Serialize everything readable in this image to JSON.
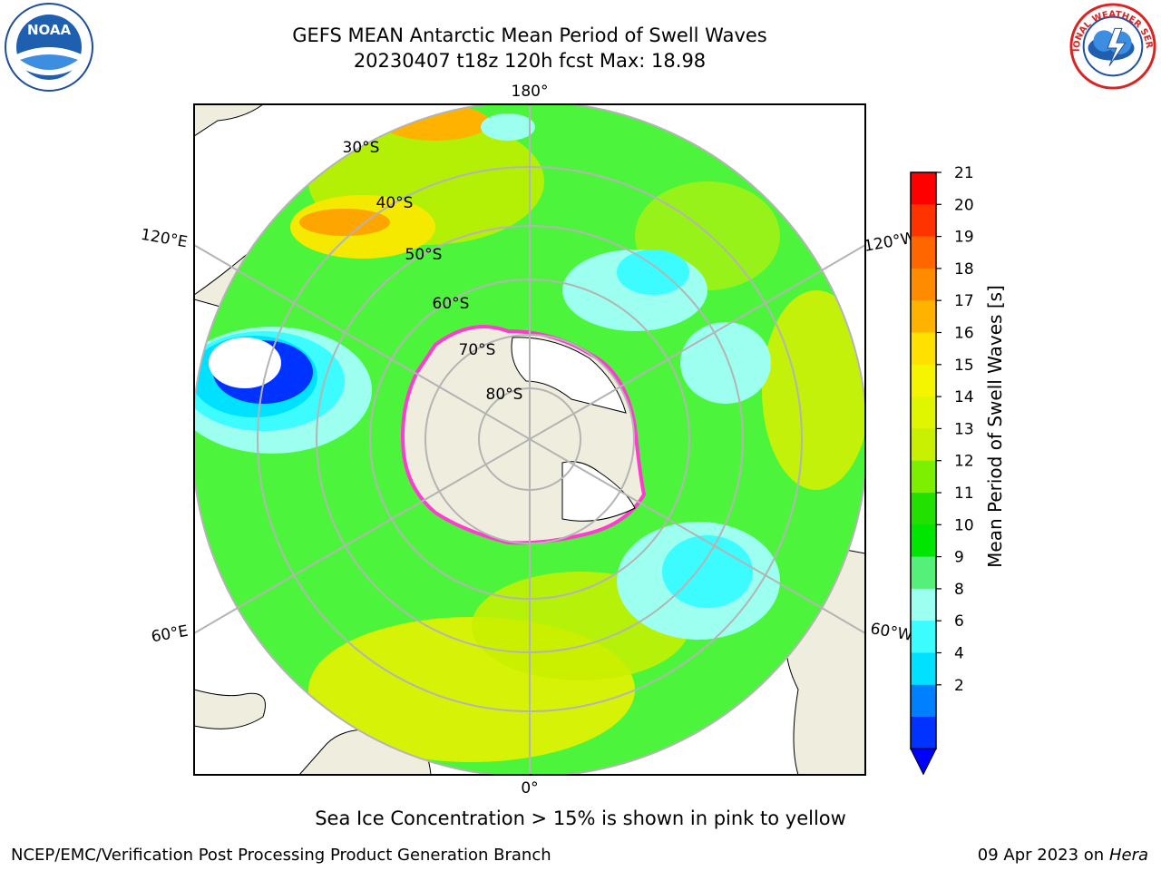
{
  "header": {
    "title_line1": "GEFS MEAN Antarctic Mean Period of Swell Waves",
    "title_line2": "20230407 t18z 120h fcst   Max: 18.98"
  },
  "logos": {
    "left": {
      "icon": "noaa-logo-icon",
      "text": "NOAA"
    },
    "right": {
      "icon": "nws-logo-icon",
      "text": "NATIONAL WEATHER SERVICE"
    }
  },
  "map": {
    "projection": "south-polar-stereographic",
    "longitude_labels": {
      "top": "180°",
      "bottom": "0°",
      "left_upper": "120°E",
      "left_lower": "60°E",
      "right_upper": "120°W",
      "right_lower": "60°W"
    },
    "latitude_labels": [
      "30°S",
      "40°S",
      "50°S",
      "60°S",
      "70°S",
      "80°S"
    ],
    "colors": {
      "land": "#efedde",
      "ice_shelf": "#ffffff",
      "sea_ice_edge": "#ff3ccf",
      "grid": "#b4b4b4"
    }
  },
  "colorbar": {
    "label": "Mean Period of Swell Waves [s]",
    "ticks": [
      "21",
      "20",
      "19",
      "18",
      "17",
      "16",
      "15",
      "14",
      "13",
      "12",
      "11",
      "10",
      "9",
      "8",
      "6",
      "4",
      "2"
    ],
    "colors_top_to_bottom": [
      "#ff0000",
      "#ff3300",
      "#ff6600",
      "#ff8c00",
      "#ffb300",
      "#ffe000",
      "#f5f500",
      "#e0f500",
      "#c8f000",
      "#7cf000",
      "#22e000",
      "#00e600",
      "#55f07a",
      "#9cfff0",
      "#3cfcff",
      "#00e0ff",
      "#0080ff",
      "#0033ff"
    ]
  },
  "caption": "Sea Ice Concentration > 15% is shown in pink to yellow",
  "footer": {
    "left": "NCEP/EMC/Verification Post Processing Product Generation Branch",
    "right_date": "09 Apr 2023 on ",
    "right_host": "Hera"
  }
}
